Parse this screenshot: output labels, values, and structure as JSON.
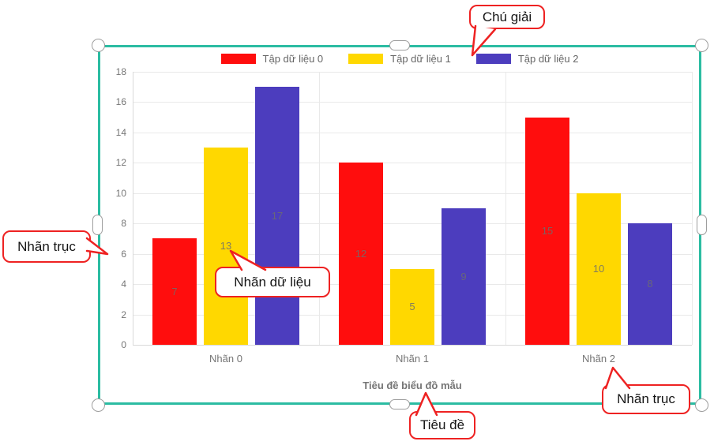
{
  "chart_data": {
    "type": "bar",
    "title": "Tiêu đề biểu đồ mẫu",
    "categories": [
      "Nhãn 0",
      "Nhãn 1",
      "Nhãn 2"
    ],
    "series": [
      {
        "name": "Tập dữ liệu 0",
        "color": "#ff0d0d",
        "values": [
          7,
          12,
          15
        ]
      },
      {
        "name": "Tập dữ liệu 1",
        "color": "#ffd800",
        "values": [
          13,
          5,
          10
        ]
      },
      {
        "name": "Tập dữ liệu 2",
        "color": "#4c3dbe",
        "values": [
          17,
          9,
          8
        ]
      }
    ],
    "y_ticks": [
      0,
      2,
      4,
      6,
      8,
      10,
      12,
      14,
      16,
      18
    ],
    "ylim": [
      0,
      18
    ],
    "legend_position": "top",
    "grid": true,
    "data_labels": true
  },
  "annotations": {
    "legend": "Chú giải",
    "y_axis": "Nhãn trục",
    "data_label": "Nhãn dữ liệu",
    "title": "Tiêu đề",
    "x_axis": "Nhãn trục"
  },
  "colors": {
    "selection": "#2bbca2",
    "callout_border": "#ee2222",
    "grid": "#e9e9e9",
    "axis_text": "#757575"
  }
}
